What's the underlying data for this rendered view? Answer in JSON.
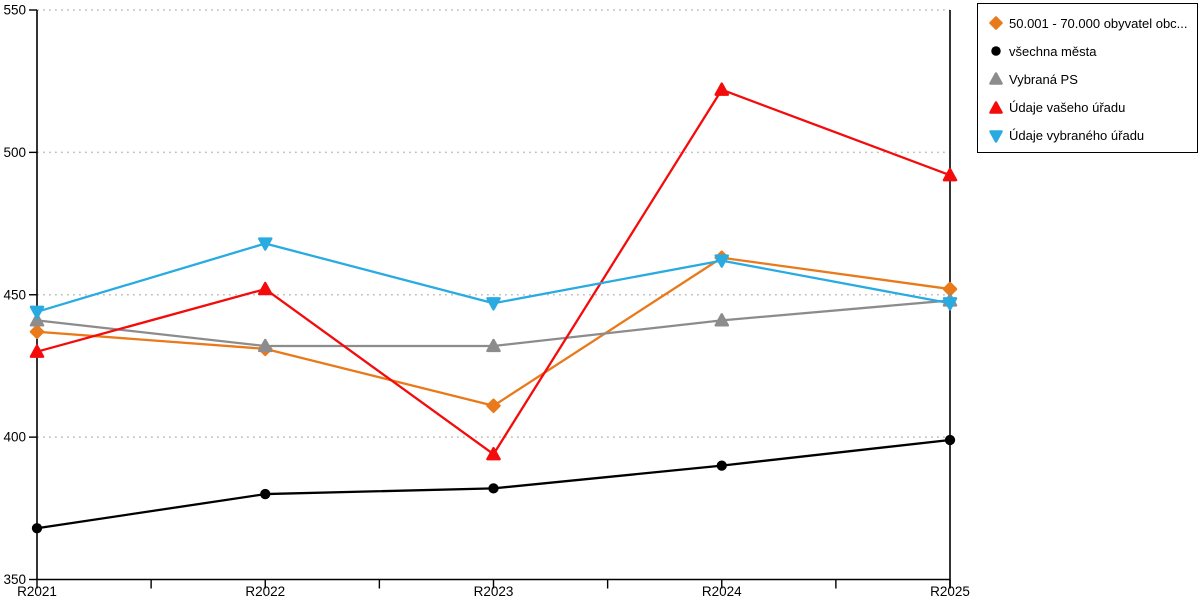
{
  "chart_data": {
    "type": "line",
    "title": "",
    "xlabel": "",
    "ylabel": "",
    "categories": [
      "R2021",
      "R2022",
      "R2023",
      "R2024",
      "R2025"
    ],
    "series": [
      {
        "name": "50.001 - 70.000 obyvatel obc...",
        "color": "#E87A1B",
        "marker": "diamond",
        "values": [
          437,
          431,
          411,
          463,
          452
        ]
      },
      {
        "name": "všechna města",
        "color": "#000000",
        "marker": "circle",
        "values": [
          368,
          380,
          382,
          390,
          399
        ]
      },
      {
        "name": "Vybraná PS",
        "color": "#8C8C8C",
        "marker": "triangle-up",
        "values": [
          441,
          432,
          432,
          441,
          448
        ]
      },
      {
        "name": "Údaje vašeho úřadu",
        "color": "#F40B0B",
        "marker": "triangle-up",
        "values": [
          430,
          452,
          394,
          522,
          492
        ]
      },
      {
        "name": "Údaje vybraného úřadu",
        "color": "#29ABE2",
        "marker": "triangle-down",
        "values": [
          444,
          468,
          447,
          462,
          447
        ]
      }
    ],
    "ylim": [
      350,
      550
    ],
    "yticks": [
      350,
      400,
      450,
      500,
      550
    ],
    "ytick_labels": [
      "350",
      "400",
      "450",
      "500",
      "550"
    ],
    "grid": "horizontal-dotted",
    "minor_x_ticks": "midpoints",
    "legend_position": "top-right"
  },
  "colors": {
    "background": "#FFFFFF",
    "axis": "#000000",
    "grid": "#BFBFBF",
    "tick_text": "#000000",
    "legend_border": "#000000"
  }
}
